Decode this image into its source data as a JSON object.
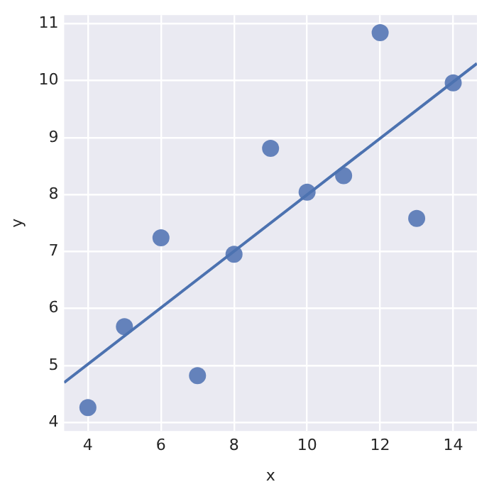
{
  "chart_data": {
    "type": "scatter",
    "xlabel": "x",
    "ylabel": "y",
    "xlim": [
      3.35,
      14.65
    ],
    "ylim": [
      3.85,
      11.15
    ],
    "xticks": [
      4,
      6,
      8,
      10,
      12,
      14
    ],
    "yticks": [
      4,
      5,
      6,
      7,
      8,
      9,
      10,
      11
    ],
    "grid": true,
    "series": [
      {
        "marker": "circle",
        "color": "#6482bb",
        "x": [
          10,
          8,
          13,
          9,
          11,
          14,
          6,
          4,
          12,
          7,
          5
        ],
        "values": [
          8.04,
          6.95,
          7.58,
          8.81,
          8.33,
          9.96,
          7.24,
          4.26,
          10.84,
          4.82,
          5.68
        ]
      },
      {
        "type": "line",
        "marker": "none",
        "color": "#4c72b0",
        "x": [
          3.35,
          14.65
        ],
        "values": [
          4.7,
          10.3
        ]
      }
    ]
  }
}
